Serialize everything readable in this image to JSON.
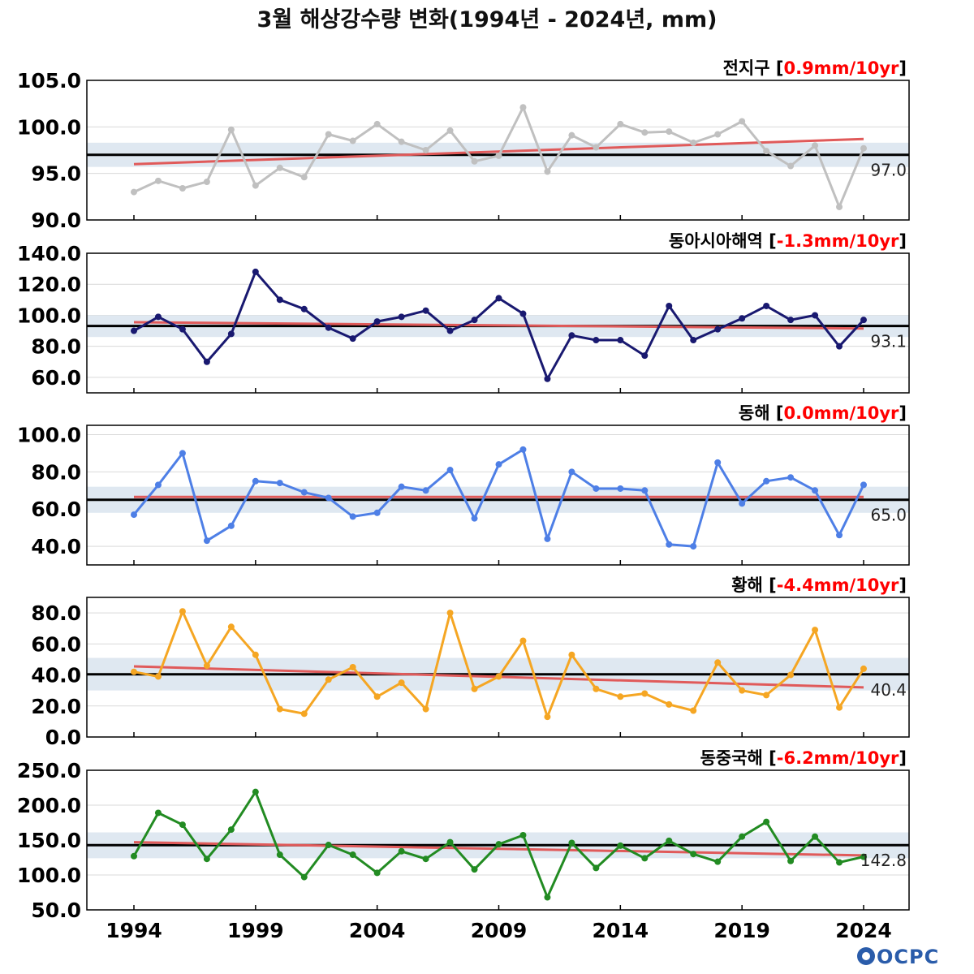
{
  "figure": {
    "title": "3월 해상강수량 변화(1994년 - 2024년, mm)",
    "logo": "OCPC"
  },
  "chart_data": [
    {
      "type": "line",
      "region": "전지구",
      "trend_label": "0.9mm/10yr",
      "mean": 97.0,
      "mean_label": "97.0",
      "band": [
        95.7,
        98.3
      ],
      "trend": [
        96.0,
        98.7
      ],
      "ylim": [
        90,
        105
      ],
      "yticks": [
        90,
        95,
        100,
        105
      ],
      "ytick_labels": [
        "90.0",
        "95.0",
        "100.0",
        "105.0"
      ],
      "color": "#c0c0c0",
      "x": [
        1994,
        1995,
        1996,
        1997,
        1998,
        1999,
        2000,
        2001,
        2002,
        2003,
        2004,
        2005,
        2006,
        2007,
        2008,
        2009,
        2010,
        2011,
        2012,
        2013,
        2014,
        2015,
        2016,
        2017,
        2018,
        2019,
        2020,
        2021,
        2022,
        2023,
        2024
      ],
      "values": [
        93.0,
        94.2,
        93.4,
        94.1,
        99.7,
        93.7,
        95.6,
        94.6,
        99.2,
        98.5,
        100.3,
        98.4,
        97.5,
        99.6,
        96.3,
        96.9,
        102.1,
        95.2,
        99.1,
        97.8,
        100.3,
        99.4,
        99.5,
        98.3,
        99.2,
        100.6,
        97.4,
        95.8,
        98.0,
        91.4,
        97.7
      ]
    },
    {
      "type": "line",
      "region": "동아시아해역",
      "trend_label": "-1.3mm/10yr",
      "mean": 93.1,
      "mean_label": "93.1",
      "band": [
        86,
        100
      ],
      "trend": [
        95.5,
        91.5
      ],
      "ylim": [
        50,
        140
      ],
      "yticks": [
        60,
        80,
        100,
        120,
        140
      ],
      "ytick_labels": [
        "60.0",
        "80.0",
        "100.0",
        "120.0",
        "140.0"
      ],
      "color": "#191970",
      "x": [
        1994,
        1995,
        1996,
        1997,
        1998,
        1999,
        2000,
        2001,
        2002,
        2003,
        2004,
        2005,
        2006,
        2007,
        2008,
        2009,
        2010,
        2011,
        2012,
        2013,
        2014,
        2015,
        2016,
        2017,
        2018,
        2019,
        2020,
        2021,
        2022,
        2023,
        2024
      ],
      "values": [
        90,
        99,
        91,
        70,
        88,
        128,
        110,
        104,
        92,
        85,
        96,
        99,
        103,
        90,
        97,
        111,
        101,
        59,
        87,
        84,
        84,
        74,
        106,
        84,
        91,
        98,
        106,
        97,
        100,
        80,
        97
      ]
    },
    {
      "type": "line",
      "region": "동해",
      "trend_label": "0.0mm/10yr",
      "mean": 65.0,
      "mean_label": "65.0",
      "band": [
        58,
        72
      ],
      "trend": [
        66.5,
        66.5
      ],
      "ylim": [
        30,
        105
      ],
      "yticks": [
        40,
        60,
        80,
        100
      ],
      "ytick_labels": [
        "40.0",
        "60.0",
        "80.0",
        "100.0"
      ],
      "color": "#4e7fe6",
      "x": [
        1994,
        1995,
        1996,
        1997,
        1998,
        1999,
        2000,
        2001,
        2002,
        2003,
        2004,
        2005,
        2006,
        2007,
        2008,
        2009,
        2010,
        2011,
        2012,
        2013,
        2014,
        2015,
        2016,
        2017,
        2018,
        2019,
        2020,
        2021,
        2022,
        2023,
        2024
      ],
      "values": [
        57,
        73,
        90,
        43,
        51,
        75,
        74,
        69,
        66,
        56,
        58,
        72,
        70,
        81,
        55,
        84,
        92,
        44,
        80,
        71,
        71,
        70,
        41,
        40,
        85,
        63,
        75,
        77,
        70,
        46,
        73
      ]
    },
    {
      "type": "line",
      "region": "황해",
      "trend_label": "-4.4mm/10yr",
      "mean": 40.4,
      "mean_label": "40.4",
      "band": [
        30,
        51
      ],
      "trend": [
        45.5,
        32
      ],
      "ylim": [
        0,
        90
      ],
      "yticks": [
        0,
        20,
        40,
        60,
        80
      ],
      "ytick_labels": [
        "0.0",
        "20.0",
        "40.0",
        "60.0",
        "80.0"
      ],
      "color": "#f5a623",
      "x": [
        1994,
        1995,
        1996,
        1997,
        1998,
        1999,
        2000,
        2001,
        2002,
        2003,
        2004,
        2005,
        2006,
        2007,
        2008,
        2009,
        2010,
        2011,
        2012,
        2013,
        2014,
        2015,
        2016,
        2017,
        2018,
        2019,
        2020,
        2021,
        2022,
        2023,
        2024
      ],
      "values": [
        42,
        39,
        81,
        46,
        71,
        53,
        18,
        15,
        37,
        45,
        26,
        35,
        18,
        80,
        31,
        39,
        62,
        13,
        53,
        31,
        26,
        28,
        21,
        17,
        48,
        30,
        27,
        40,
        69,
        19,
        44
      ]
    },
    {
      "type": "line",
      "region": "동중국해",
      "trend_label": "-6.2mm/10yr",
      "mean": 142.8,
      "mean_label": "142.8",
      "band": [
        124,
        161
      ],
      "trend": [
        147,
        128
      ],
      "ylim": [
        50,
        250
      ],
      "yticks": [
        50,
        100,
        150,
        200,
        250
      ],
      "ytick_labels": [
        "50.0",
        "100.0",
        "150.0",
        "200.0",
        "250.0"
      ],
      "color": "#228b22",
      "x": [
        1994,
        1995,
        1996,
        1997,
        1998,
        1999,
        2000,
        2001,
        2002,
        2003,
        2004,
        2005,
        2006,
        2007,
        2008,
        2009,
        2010,
        2011,
        2012,
        2013,
        2014,
        2015,
        2016,
        2017,
        2018,
        2019,
        2020,
        2021,
        2022,
        2023,
        2024
      ],
      "values": [
        127,
        189,
        172,
        123,
        165,
        219,
        129,
        97,
        143,
        129,
        103,
        134,
        123,
        147,
        108,
        144,
        157,
        68,
        146,
        110,
        142,
        124,
        149,
        130,
        119,
        155,
        176,
        120,
        155,
        118,
        126
      ]
    }
  ],
  "x_axis": {
    "ticks": [
      1994,
      1999,
      2004,
      2009,
      2014,
      2019,
      2024
    ],
    "tick_labels": [
      "1994",
      "1999",
      "2004",
      "2009",
      "2014",
      "2019",
      "2024"
    ],
    "xlim": [
      1994,
      2024
    ]
  },
  "colors": {
    "trend": "#e05a5a",
    "mean": "#000000",
    "band": "#dfe8f1",
    "grid": "#d9d9d9"
  }
}
